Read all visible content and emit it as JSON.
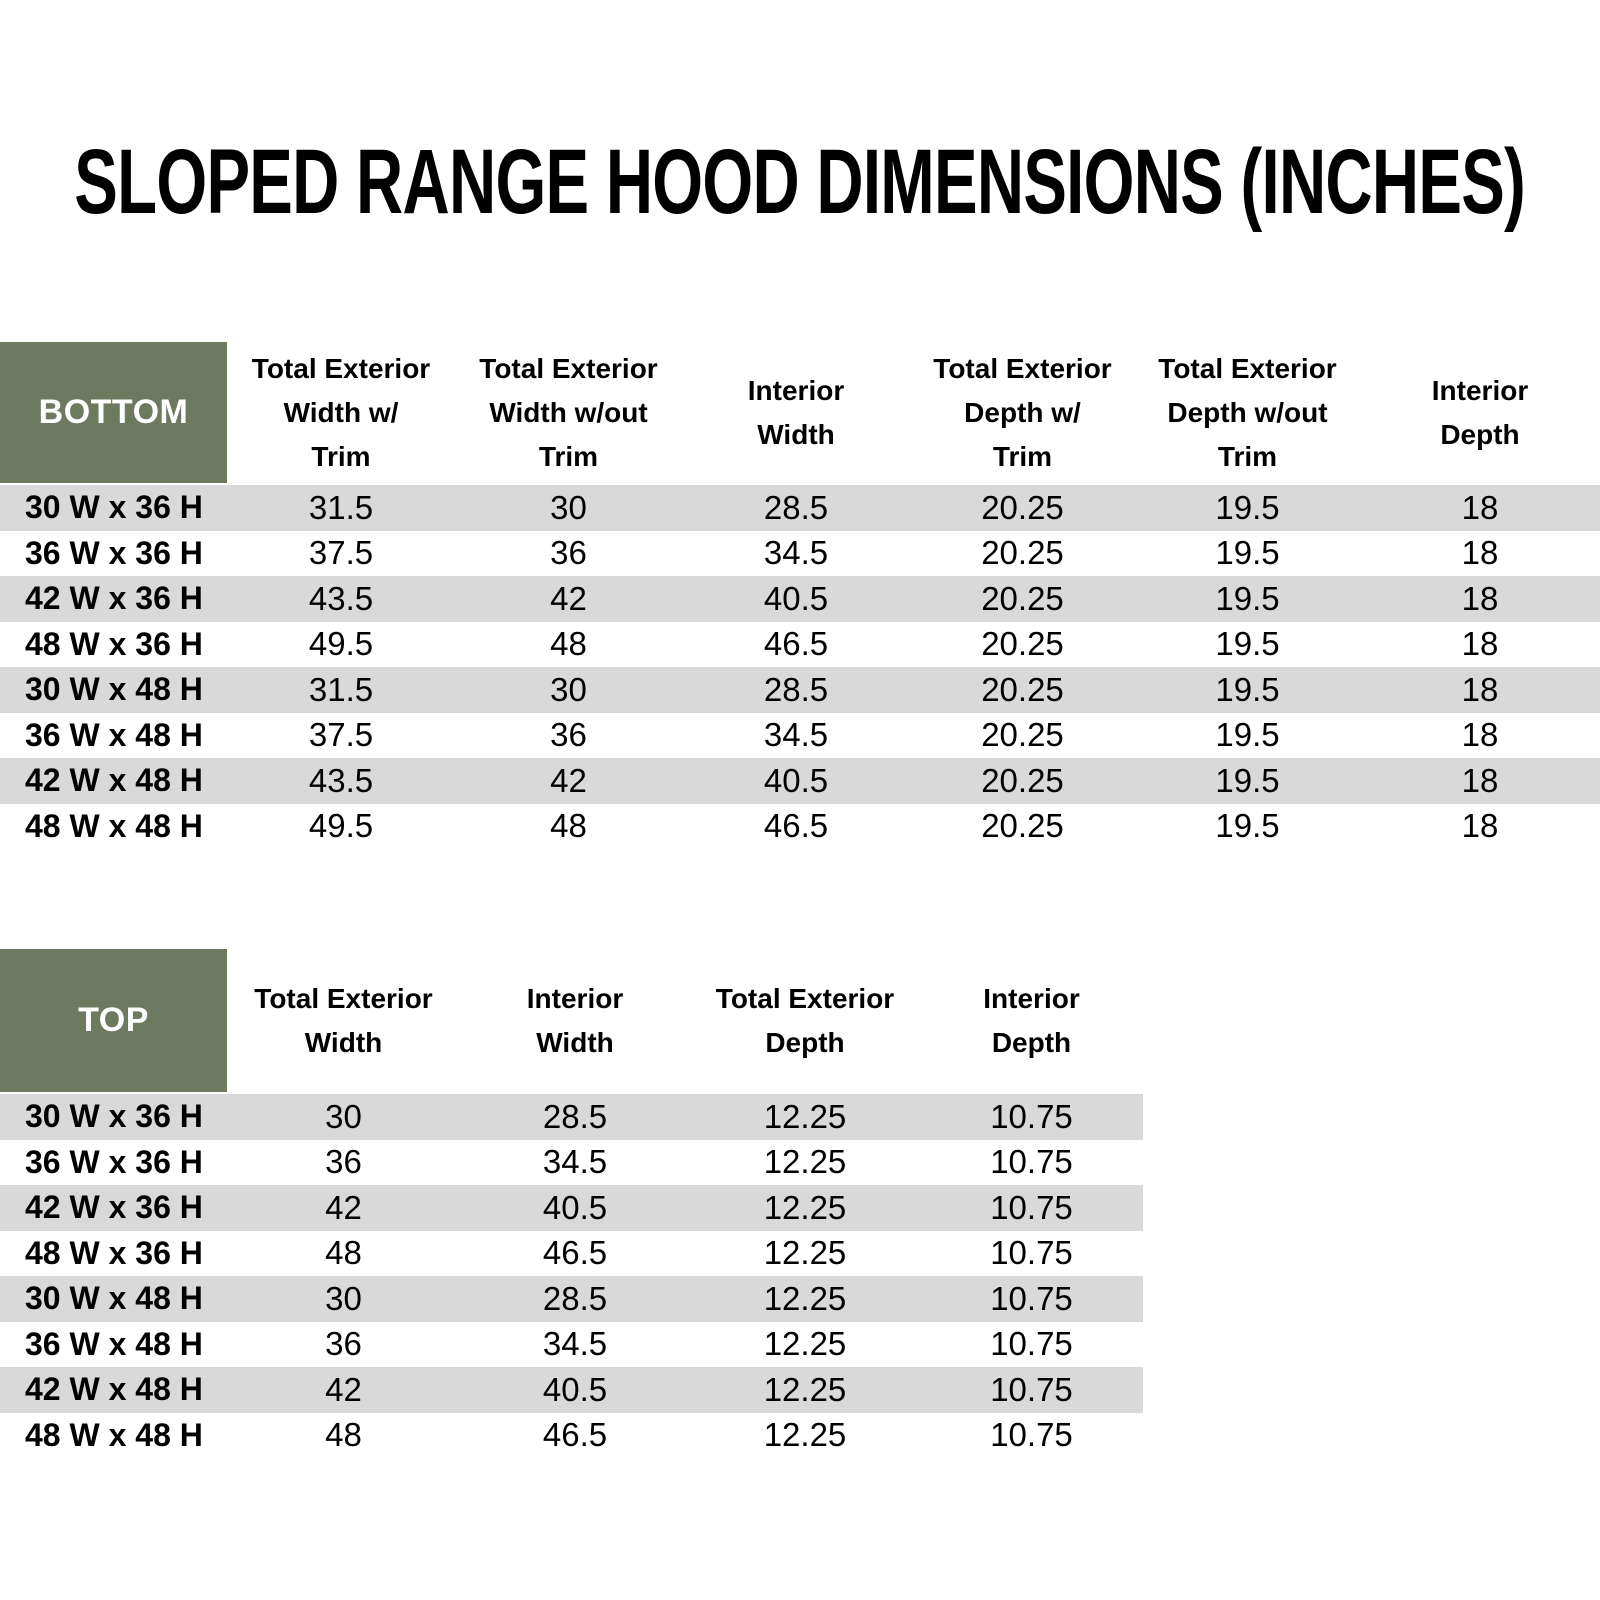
{
  "title": "SLOPED RANGE HOOD DIMENSIONS (INCHES)",
  "colors": {
    "header_label_bg": "#6E7A60",
    "row_band": "#D9D9D9",
    "header_label_text": "#FFFFFF",
    "text": "#000000"
  },
  "tables": {
    "bottom": {
      "label": "BOTTOM",
      "columns": [
        "Total Exterior\nWidth w/\nTrim",
        "Total Exterior\nWidth w/out\nTrim",
        "Interior\nWidth",
        "Total Exterior\nDepth w/\nTrim",
        "Total Exterior\nDepth w/out\nTrim",
        "Interior\nDepth"
      ],
      "rows": [
        {
          "label": "30 W x 36 H",
          "values": [
            "31.5",
            "30",
            "28.5",
            "20.25",
            "19.5",
            "18"
          ]
        },
        {
          "label": "36 W x 36 H",
          "values": [
            "37.5",
            "36",
            "34.5",
            "20.25",
            "19.5",
            "18"
          ]
        },
        {
          "label": "42 W x 36 H",
          "values": [
            "43.5",
            "42",
            "40.5",
            "20.25",
            "19.5",
            "18"
          ]
        },
        {
          "label": "48 W x 36 H",
          "values": [
            "49.5",
            "48",
            "46.5",
            "20.25",
            "19.5",
            "18"
          ]
        },
        {
          "label": "30 W x 48 H",
          "values": [
            "31.5",
            "30",
            "28.5",
            "20.25",
            "19.5",
            "18"
          ]
        },
        {
          "label": "36 W x 48 H",
          "values": [
            "37.5",
            "36",
            "34.5",
            "20.25",
            "19.5",
            "18"
          ]
        },
        {
          "label": "42 W x 48 H",
          "values": [
            "43.5",
            "42",
            "40.5",
            "20.25",
            "19.5",
            "18"
          ]
        },
        {
          "label": "48 W x 48 H",
          "values": [
            "49.5",
            "48",
            "46.5",
            "20.25",
            "19.5",
            "18"
          ]
        }
      ]
    },
    "top": {
      "label": "TOP",
      "columns": [
        "Total Exterior\nWidth",
        "Interior\nWidth",
        "Total Exterior\nDepth",
        "Interior\nDepth"
      ],
      "rows": [
        {
          "label": "30 W x 36 H",
          "values": [
            "30",
            "28.5",
            "12.25",
            "10.75"
          ]
        },
        {
          "label": "36 W x 36 H",
          "values": [
            "36",
            "34.5",
            "12.25",
            "10.75"
          ]
        },
        {
          "label": "42 W x 36 H",
          "values": [
            "42",
            "40.5",
            "12.25",
            "10.75"
          ]
        },
        {
          "label": "48 W x 36 H",
          "values": [
            "48",
            "46.5",
            "12.25",
            "10.75"
          ]
        },
        {
          "label": "30 W x 48 H",
          "values": [
            "30",
            "28.5",
            "12.25",
            "10.75"
          ]
        },
        {
          "label": "36 W x 48 H",
          "values": [
            "36",
            "34.5",
            "12.25",
            "10.75"
          ]
        },
        {
          "label": "42 W x 48 H",
          "values": [
            "42",
            "40.5",
            "12.25",
            "10.75"
          ]
        },
        {
          "label": "48 W x 48 H",
          "values": [
            "48",
            "46.5",
            "12.25",
            "10.75"
          ]
        }
      ]
    }
  }
}
